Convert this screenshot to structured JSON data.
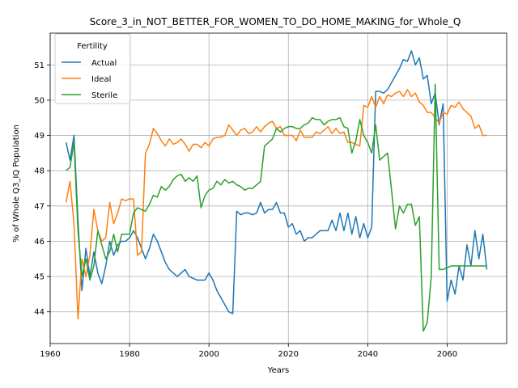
{
  "chart_data": {
    "type": "line",
    "title": "Score_3_in_NOT_BETTER_FOR_WOMEN_TO_DO_HOME_MAKING_for_Whole_Q",
    "xlabel": "Years",
    "ylabel": "% of Whole Q3_IQ Population",
    "xlim": [
      1960,
      2075
    ],
    "ylim": [
      43.1,
      51.9
    ],
    "xticks": [
      1960,
      1980,
      2000,
      2020,
      2040,
      2060
    ],
    "yticks": [
      44,
      45,
      46,
      47,
      48,
      49,
      50,
      51
    ],
    "grid": true,
    "legend": {
      "title": "Fertility",
      "position": "top-left"
    },
    "x": [
      1964,
      1965,
      1966,
      1967,
      1968,
      1969,
      1970,
      1971,
      1972,
      1973,
      1974,
      1975,
      1976,
      1977,
      1978,
      1979,
      1980,
      1981,
      1982,
      1983,
      1984,
      1985,
      1986,
      1987,
      1988,
      1989,
      1990,
      1991,
      1992,
      1993,
      1994,
      1995,
      1996,
      1997,
      1998,
      1999,
      2000,
      2001,
      2002,
      2003,
      2004,
      2005,
      2006,
      2007,
      2008,
      2009,
      2010,
      2011,
      2012,
      2013,
      2014,
      2015,
      2016,
      2017,
      2018,
      2019,
      2020,
      2021,
      2022,
      2023,
      2024,
      2025,
      2026,
      2027,
      2028,
      2029,
      2030,
      2031,
      2032,
      2033,
      2034,
      2035,
      2036,
      2037,
      2038,
      2039,
      2040,
      2041,
      2042,
      2043,
      2044,
      2045,
      2046,
      2047,
      2048,
      2049,
      2050,
      2051,
      2052,
      2053,
      2054,
      2055,
      2056,
      2057,
      2058,
      2059,
      2060,
      2061,
      2062,
      2063,
      2064,
      2065,
      2066,
      2067,
      2068,
      2069,
      2070
    ],
    "series": [
      {
        "name": "Actual",
        "color": "#1f77b4",
        "values": [
          48.8,
          48.3,
          49.0,
          46.6,
          44.6,
          45.8,
          45.0,
          45.7,
          45.1,
          44.8,
          45.3,
          46.0,
          45.6,
          45.9,
          46.0,
          46.0,
          46.1,
          46.3,
          46.1,
          45.8,
          45.5,
          45.8,
          46.2,
          46.0,
          45.7,
          45.4,
          45.2,
          45.1,
          45.0,
          45.1,
          45.2,
          45.0,
          44.95,
          44.9,
          44.9,
          44.9,
          45.1,
          44.9,
          44.6,
          44.4,
          44.2,
          44.0,
          43.95,
          46.85,
          46.75,
          46.8,
          46.8,
          46.75,
          46.8,
          47.1,
          46.8,
          46.9,
          46.9,
          47.1,
          46.8,
          46.8,
          46.4,
          46.5,
          46.2,
          46.3,
          46.0,
          46.1,
          46.1,
          46.2,
          46.3,
          46.3,
          46.3,
          46.6,
          46.3,
          46.8,
          46.3,
          46.8,
          46.2,
          46.7,
          46.1,
          46.5,
          46.1,
          46.4,
          50.25,
          50.25,
          50.2,
          50.3,
          50.5,
          50.7,
          50.9,
          51.15,
          51.1,
          51.4,
          51.0,
          51.2,
          50.6,
          50.7,
          49.9,
          50.2,
          49.3,
          49.9,
          44.3,
          44.9,
          44.5,
          45.3,
          44.9,
          45.9,
          45.3,
          46.3,
          45.5,
          46.2,
          45.2
        ]
      },
      {
        "name": "Ideal",
        "color": "#ff7f0e",
        "values": [
          47.1,
          47.7,
          46.5,
          43.8,
          45.5,
          45.0,
          45.6,
          46.9,
          46.3,
          46.0,
          46.1,
          47.1,
          46.5,
          46.8,
          47.2,
          47.15,
          47.2,
          47.2,
          45.6,
          45.7,
          48.5,
          48.75,
          49.2,
          49.05,
          48.85,
          48.7,
          48.9,
          48.75,
          48.8,
          48.9,
          48.75,
          48.55,
          48.75,
          48.75,
          48.65,
          48.8,
          48.7,
          48.9,
          48.95,
          48.95,
          49.0,
          49.3,
          49.15,
          49.0,
          49.15,
          49.2,
          49.05,
          49.1,
          49.25,
          49.1,
          49.25,
          49.35,
          49.4,
          49.2,
          49.25,
          49.0,
          49.0,
          49.0,
          48.85,
          49.15,
          48.95,
          48.95,
          48.95,
          49.1,
          49.05,
          49.15,
          49.25,
          49.05,
          49.2,
          49.05,
          49.1,
          48.8,
          48.8,
          48.75,
          48.7,
          49.85,
          49.8,
          50.1,
          49.8,
          50.1,
          49.9,
          50.15,
          50.1,
          50.2,
          50.25,
          50.1,
          50.3,
          50.1,
          50.2,
          49.95,
          49.85,
          49.65,
          49.65,
          49.5,
          49.35,
          49.65,
          49.6,
          49.85,
          49.8,
          49.95,
          49.75,
          49.65,
          49.55,
          49.2,
          49.3,
          49.0,
          49.0
        ]
      },
      {
        "name": "Sterile",
        "color": "#2ca02c",
        "values": [
          48.0,
          48.1,
          48.8,
          46.3,
          45.0,
          45.5,
          44.9,
          45.3,
          46.3,
          45.9,
          45.5,
          45.7,
          46.2,
          45.7,
          46.2,
          46.2,
          46.2,
          46.8,
          46.95,
          46.9,
          46.85,
          47.05,
          47.3,
          47.25,
          47.55,
          47.45,
          47.55,
          47.75,
          47.85,
          47.9,
          47.7,
          47.8,
          47.7,
          47.85,
          46.95,
          47.3,
          47.45,
          47.5,
          47.7,
          47.6,
          47.75,
          47.65,
          47.7,
          47.6,
          47.55,
          47.45,
          47.5,
          47.5,
          47.6,
          47.7,
          48.7,
          48.8,
          48.9,
          49.2,
          49.1,
          49.2,
          49.25,
          49.25,
          49.2,
          49.2,
          49.3,
          49.35,
          49.5,
          49.45,
          49.45,
          49.3,
          49.4,
          49.45,
          49.45,
          49.5,
          49.25,
          49.2,
          48.5,
          48.85,
          49.45,
          49.0,
          48.8,
          48.5,
          49.3,
          48.3,
          48.4,
          48.5,
          47.45,
          46.35,
          47.0,
          46.8,
          47.05,
          47.05,
          46.45,
          46.7,
          43.45,
          43.7,
          45.0,
          50.45,
          45.2,
          45.2,
          45.25,
          45.3,
          45.3,
          45.3,
          45.3,
          45.3,
          45.3,
          45.3,
          45.3,
          45.3,
          45.3
        ]
      }
    ]
  }
}
